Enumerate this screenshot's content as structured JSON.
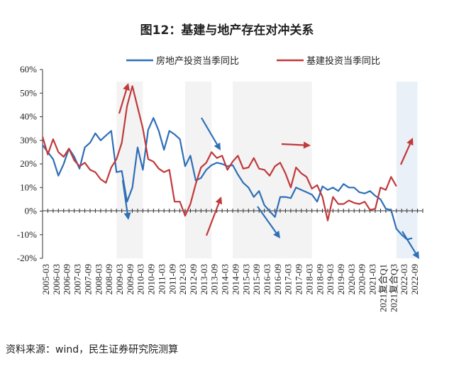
{
  "title": "图12：基建与地产存在对冲关系",
  "source": "资料来源：wind，民生证券研究院测算",
  "colors": {
    "realestate": "#2e6fb7",
    "infra": "#c0393b",
    "shade": "#f3f3f3",
    "shade_recent": "#eaf0f8"
  },
  "chart_data": {
    "type": "line",
    "title": "图12：基建与地产存在对冲关系",
    "xlabel": "",
    "ylabel": "",
    "ylim": [
      -0.2,
      0.6
    ],
    "yticks": [
      "-20%",
      "-10%",
      "0%",
      "10%",
      "20%",
      "30%",
      "40%",
      "50%",
      "60%"
    ],
    "x_tick_labels": [
      "2005-03",
      "2006-03",
      "2006-09",
      "2007-03",
      "2007-09",
      "2008-03",
      "2008-09",
      "2009-03",
      "2009-09",
      "2010-03",
      "2010-09",
      "2011-03",
      "2011-09",
      "2012-03",
      "2012-09",
      "2013-03",
      "2013-09",
      "2014-03",
      "2014-09",
      "2015-03",
      "2015-09",
      "2016-03",
      "2016-09",
      "2017-03",
      "2017-09",
      "2018-03",
      "2018-09",
      "2019-03",
      "2019-09",
      "2020-03",
      "2020-09",
      "2021-03",
      "2021复合Q1",
      "2021复合Q3",
      "2022-03",
      "2022-09"
    ],
    "legend_position": "top",
    "grid": false,
    "shaded_periods": [
      {
        "from": "2008-Q3",
        "to": "2009-Q4"
      },
      {
        "from": "2011-Q4",
        "to": "2013-Q1"
      },
      {
        "from": "2014-Q1",
        "to": "2017-Q4"
      },
      {
        "from": "2021-Q4",
        "to": "2022-Q4"
      }
    ],
    "series": [
      {
        "name": "房地产投资当季同比",
        "color": "#2e6fb7",
        "points": [
          [
            "2005-Q1",
            0.28
          ],
          [
            "2005-Q2",
            0.25
          ],
          [
            "2005-Q3",
            0.22
          ],
          [
            "2005-Q4",
            0.15
          ],
          [
            "2006-Q1",
            0.2
          ],
          [
            "2006-Q2",
            0.265
          ],
          [
            "2006-Q3",
            0.23
          ],
          [
            "2006-Q4",
            0.18
          ],
          [
            "2007-Q1",
            0.27
          ],
          [
            "2007-Q2",
            0.29
          ],
          [
            "2007-Q3",
            0.33
          ],
          [
            "2007-Q4",
            0.3
          ],
          [
            "2008-Q1",
            0.32
          ],
          [
            "2008-Q2",
            0.34
          ],
          [
            "2008-Q3",
            0.165
          ],
          [
            "2008-Q4",
            0.17
          ],
          [
            "2009-Q1",
            0.04
          ],
          [
            "2009-Q2",
            0.1
          ],
          [
            "2009-Q3",
            0.27
          ],
          [
            "2009-Q4",
            0.175
          ],
          [
            "2010-Q1",
            0.345
          ],
          [
            "2010-Q2",
            0.395
          ],
          [
            "2010-Q3",
            0.34
          ],
          [
            "2010-Q4",
            0.26
          ],
          [
            "2011-Q1",
            0.34
          ],
          [
            "2011-Q2",
            0.325
          ],
          [
            "2011-Q3",
            0.305
          ],
          [
            "2011-Q4",
            0.19
          ],
          [
            "2012-Q1",
            0.235
          ],
          [
            "2012-Q2",
            0.13
          ],
          [
            "2012-Q3",
            0.14
          ],
          [
            "2012-Q4",
            0.175
          ],
          [
            "2013-Q1",
            0.195
          ],
          [
            "2013-Q2",
            0.205
          ],
          [
            "2013-Q3",
            0.2
          ],
          [
            "2013-Q4",
            0.19
          ],
          [
            "2014-Q1",
            0.195
          ],
          [
            "2014-Q2",
            0.155
          ],
          [
            "2014-Q3",
            0.12
          ],
          [
            "2014-Q4",
            0.1
          ],
          [
            "2015-Q1",
            0.06
          ],
          [
            "2015-Q2",
            0.085
          ],
          [
            "2015-Q3",
            0.025
          ],
          [
            "2015-Q4",
            0.0
          ],
          [
            "2016-Q1",
            -0.025
          ],
          [
            "2016-Q2",
            0.06
          ],
          [
            "2016-Q3",
            0.06
          ],
          [
            "2016-Q4",
            0.055
          ],
          [
            "2017-Q1",
            0.1
          ],
          [
            "2017-Q2",
            0.09
          ],
          [
            "2017-Q3",
            0.08
          ],
          [
            "2017-Q4",
            0.07
          ],
          [
            "2018-Q1",
            0.04
          ],
          [
            "2018-Q2",
            0.105
          ],
          [
            "2018-Q3",
            0.09
          ],
          [
            "2018-Q4",
            0.1
          ],
          [
            "2019-Q1",
            0.085
          ],
          [
            "2019-Q2",
            0.115
          ],
          [
            "2019-Q3",
            0.1
          ],
          [
            "2019-Q4",
            0.1
          ],
          [
            "2020-Q1",
            0.08
          ],
          [
            "2020-Q2",
            0.075
          ],
          [
            "2020-Q3",
            0.085
          ],
          [
            "2020-Q4",
            0.065
          ],
          [
            "2021-Q1",
            0.05
          ],
          [
            "2021-Q2",
            0.01
          ],
          [
            "2021-Q3",
            0.005
          ],
          [
            "2021-Q4",
            -0.075
          ],
          [
            "2022-Q1",
            -0.1
          ],
          [
            "2022-Q2",
            -0.12
          ],
          [
            "2022-Q3",
            -0.115
          ]
        ]
      },
      {
        "name": "基建投资当季同比",
        "color": "#c0393b",
        "points": [
          [
            "2005-Q1",
            0.315
          ],
          [
            "2005-Q2",
            0.24
          ],
          [
            "2005-Q3",
            0.305
          ],
          [
            "2005-Q4",
            0.25
          ],
          [
            "2006-Q1",
            0.23
          ],
          [
            "2006-Q2",
            0.265
          ],
          [
            "2006-Q3",
            0.215
          ],
          [
            "2006-Q4",
            0.19
          ],
          [
            "2007-Q1",
            0.205
          ],
          [
            "2007-Q2",
            0.175
          ],
          [
            "2007-Q3",
            0.165
          ],
          [
            "2007-Q4",
            0.135
          ],
          [
            "2008-Q1",
            0.12
          ],
          [
            "2008-Q2",
            0.185
          ],
          [
            "2008-Q3",
            0.22
          ],
          [
            "2008-Q4",
            0.29
          ],
          [
            "2009-Q1",
            0.445
          ],
          [
            "2009-Q2",
            0.53
          ],
          [
            "2009-Q3",
            0.44
          ],
          [
            "2009-Q4",
            0.35
          ],
          [
            "2010-Q1",
            0.22
          ],
          [
            "2010-Q2",
            0.21
          ],
          [
            "2010-Q3",
            0.18
          ],
          [
            "2010-Q4",
            0.165
          ],
          [
            "2011-Q1",
            0.175
          ],
          [
            "2011-Q2",
            0.04
          ],
          [
            "2011-Q3",
            0.04
          ],
          [
            "2011-Q4",
            -0.02
          ],
          [
            "2012-Q1",
            0.03
          ],
          [
            "2012-Q2",
            0.115
          ],
          [
            "2012-Q3",
            0.185
          ],
          [
            "2012-Q4",
            0.205
          ],
          [
            "2013-Q1",
            0.25
          ],
          [
            "2013-Q2",
            0.225
          ],
          [
            "2013-Q3",
            0.235
          ],
          [
            "2013-Q4",
            0.175
          ],
          [
            "2014-Q1",
            0.21
          ],
          [
            "2014-Q2",
            0.235
          ],
          [
            "2014-Q3",
            0.18
          ],
          [
            "2014-Q4",
            0.185
          ],
          [
            "2015-Q1",
            0.225
          ],
          [
            "2015-Q2",
            0.18
          ],
          [
            "2015-Q3",
            0.175
          ],
          [
            "2015-Q4",
            0.15
          ],
          [
            "2016-Q1",
            0.19
          ],
          [
            "2016-Q2",
            0.205
          ],
          [
            "2016-Q3",
            0.16
          ],
          [
            "2016-Q4",
            0.1
          ],
          [
            "2017-Q1",
            0.185
          ],
          [
            "2017-Q2",
            0.16
          ],
          [
            "2017-Q3",
            0.145
          ],
          [
            "2017-Q4",
            0.095
          ],
          [
            "2018-Q1",
            0.11
          ],
          [
            "2018-Q2",
            0.06
          ],
          [
            "2018-Q3",
            -0.04
          ],
          [
            "2018-Q4",
            0.06
          ],
          [
            "2019-Q1",
            0.03
          ],
          [
            "2019-Q2",
            0.03
          ],
          [
            "2019-Q3",
            0.045
          ],
          [
            "2019-Q4",
            0.035
          ],
          [
            "2020-Q1",
            0.03
          ],
          [
            "2020-Q2",
            0.04
          ],
          [
            "2020-Q3",
            0.005
          ],
          [
            "2020-Q4",
            0.01
          ],
          [
            "2021-Q1",
            0.1
          ],
          [
            "2021-Q2",
            0.09
          ],
          [
            "2021-Q3",
            0.145
          ],
          [
            "2021-Q4",
            0.105
          ]
        ]
      }
    ]
  }
}
